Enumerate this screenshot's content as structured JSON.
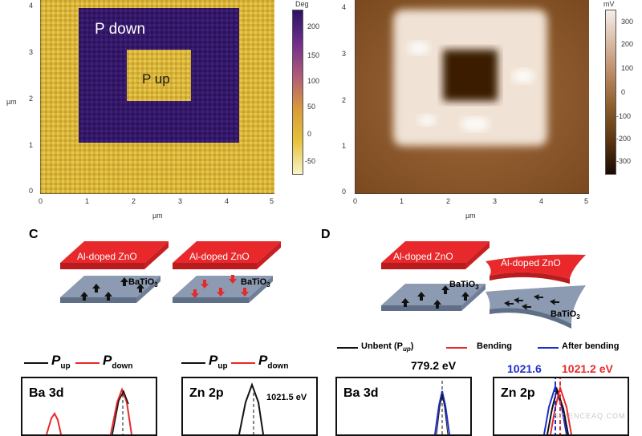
{
  "panel_a": {
    "label_down": "P down",
    "label_up": "P up",
    "xticks": [
      "0",
      "1",
      "2",
      "3",
      "4",
      "5"
    ],
    "yticks": [
      "0",
      "1",
      "2",
      "3",
      "4"
    ],
    "xunit": "µm",
    "yunit": "µm",
    "colorbar": {
      "unit": "Deg",
      "ticks": [
        "200",
        "150",
        "100",
        "50",
        "0",
        "-50"
      ],
      "colors": [
        "#2b1363",
        "#6e2e8c",
        "#b15a7a",
        "#d99a3a",
        "#e6c33a",
        "#f0ea9a"
      ]
    }
  },
  "panel_b": {
    "xticks": [
      "0",
      "1",
      "2",
      "3",
      "4",
      "5"
    ],
    "yticks": [
      "0",
      "1",
      "2",
      "3",
      "4"
    ],
    "xunit": "µm",
    "yunit": "µm",
    "colorbar": {
      "unit": "mV",
      "ticks": [
        "300",
        "200",
        "100",
        "0",
        "-100",
        "-200",
        "-300"
      ],
      "colors": [
        "#f6eee8",
        "#d8b9a4",
        "#b8865f",
        "#8a5a2b",
        "#5a3510",
        "#2a1405"
      ]
    }
  },
  "panel_c": {
    "letter": "C",
    "slab_label": "Al-doped ZnO",
    "substrate_label": "BaTiO3",
    "legend": {
      "up_label": "P",
      "up_sub": "up",
      "down_label": "P",
      "down_sub": "down"
    },
    "box1_title": "Ba 3d",
    "box2_title": "Zn 2p",
    "box2_peak": "1021.5 eV"
  },
  "panel_d": {
    "letter": "D",
    "slab_label": "Al-doped ZnO",
    "substrate_label": "BaTiO3",
    "legend": {
      "unbent": "Unbent (P",
      "unbent_sub": "up",
      "unbent_end": ")",
      "bending": "Bending",
      "after": "After bending"
    },
    "box1_title": "Ba 3d",
    "box1_peak": "779.2 eV",
    "box2_title": "Zn 2p",
    "box2_peak_blue": "1021.6",
    "box2_peak_red": "1021.2 eV"
  },
  "watermark": "SCIENCEAQ.COM",
  "colors": {
    "red": "#e8282a",
    "blue": "#1e2fc8",
    "black": "#111111",
    "slate": "#8c9bb2"
  }
}
